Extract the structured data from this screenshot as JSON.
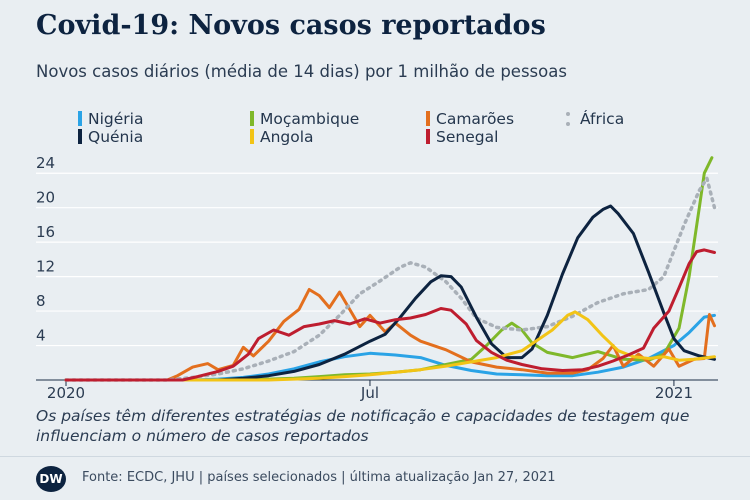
{
  "title": "Covid-19: Novos casos reportados",
  "subtitle": "Novos casos diários (média de 14 dias) por 1 milhão de pessoas",
  "note": "Os países têm diferentes estratégias de notificação e capacidades de testagem que influenciam o número de casos reportados",
  "logo_text": "DW",
  "source": "Fonte: ECDC, JHU | países selecionados | última atualização Jan 27, 2021",
  "chart_data": {
    "type": "line",
    "title": "Covid-19: Novos casos reportados",
    "subtitle": "Novos casos diários (média de 14 dias) por 1 milhão de pessoas",
    "xlabel": "",
    "ylabel": "",
    "x_unit": "months since 2020-01-01",
    "xlim": [
      0,
      12.87
    ],
    "ylim": [
      0,
      26
    ],
    "grid": true,
    "legend_position": "top",
    "xticks": [
      {
        "x": 0,
        "label": "2020"
      },
      {
        "x": 6,
        "label": "Jul"
      },
      {
        "x": 12,
        "label": "2021"
      }
    ],
    "yticks": [
      4,
      8,
      12,
      16,
      20,
      24
    ],
    "series": [
      {
        "name": "Nigéria",
        "color": "#2aa3e6",
        "style": "solid",
        "points": [
          [
            0,
            0
          ],
          [
            2.5,
            0
          ],
          [
            3,
            0.1
          ],
          [
            3.5,
            0.3
          ],
          [
            4,
            0.7
          ],
          [
            4.5,
            1.3
          ],
          [
            5,
            2.1
          ],
          [
            5.5,
            2.7
          ],
          [
            6,
            3.1
          ],
          [
            6.5,
            2.9
          ],
          [
            7,
            2.6
          ],
          [
            7.5,
            1.7
          ],
          [
            8,
            1.1
          ],
          [
            8.5,
            0.7
          ],
          [
            9,
            0.6
          ],
          [
            9.5,
            0.5
          ],
          [
            10,
            0.5
          ],
          [
            10.5,
            0.9
          ],
          [
            11,
            1.5
          ],
          [
            11.5,
            2.5
          ],
          [
            12,
            4
          ],
          [
            12.3,
            5.5
          ],
          [
            12.6,
            7.3
          ],
          [
            12.8,
            7.5
          ]
        ]
      },
      {
        "name": "Moçambique",
        "color": "#7fb82a",
        "style": "solid",
        "points": [
          [
            0,
            0
          ],
          [
            3.5,
            0
          ],
          [
            4,
            0.1
          ],
          [
            4.5,
            0.2
          ],
          [
            5,
            0.4
          ],
          [
            5.5,
            0.6
          ],
          [
            6,
            0.7
          ],
          [
            6.5,
            0.9
          ],
          [
            7,
            1.2
          ],
          [
            7.5,
            1.8
          ],
          [
            8,
            2.4
          ],
          [
            8.3,
            4
          ],
          [
            8.6,
            5.8
          ],
          [
            8.8,
            6.6
          ],
          [
            9,
            5.8
          ],
          [
            9.2,
            4.3
          ],
          [
            9.5,
            3.2
          ],
          [
            10,
            2.6
          ],
          [
            10.5,
            3.3
          ],
          [
            11,
            2.4
          ],
          [
            11.5,
            2.3
          ],
          [
            11.8,
            3
          ],
          [
            12.1,
            6
          ],
          [
            12.3,
            12
          ],
          [
            12.5,
            20
          ],
          [
            12.6,
            24
          ],
          [
            12.75,
            25.8
          ]
        ]
      },
      {
        "name": "Camarões",
        "color": "#e36f1e",
        "style": "solid",
        "points": [
          [
            0,
            0
          ],
          [
            2,
            0
          ],
          [
            2.2,
            0.5
          ],
          [
            2.5,
            1.5
          ],
          [
            2.8,
            1.9
          ],
          [
            3,
            1.2
          ],
          [
            3.3,
            1.7
          ],
          [
            3.5,
            3.8
          ],
          [
            3.7,
            2.8
          ],
          [
            4,
            4.5
          ],
          [
            4.3,
            6.8
          ],
          [
            4.6,
            8.2
          ],
          [
            4.8,
            10.5
          ],
          [
            5,
            9.8
          ],
          [
            5.2,
            8.4
          ],
          [
            5.4,
            10.2
          ],
          [
            5.6,
            8.2
          ],
          [
            5.8,
            6.2
          ],
          [
            6,
            7.5
          ],
          [
            6.3,
            5.6
          ],
          [
            6.5,
            6.6
          ],
          [
            6.8,
            5.2
          ],
          [
            7,
            4.5
          ],
          [
            7.5,
            3.5
          ],
          [
            8,
            2.1
          ],
          [
            8.5,
            1.5
          ],
          [
            9,
            1.2
          ],
          [
            9.5,
            0.8
          ],
          [
            10,
            0.8
          ],
          [
            10.3,
            1.2
          ],
          [
            10.6,
            2.5
          ],
          [
            10.8,
            4
          ],
          [
            11,
            1.6
          ],
          [
            11.3,
            3
          ],
          [
            11.6,
            1.6
          ],
          [
            11.9,
            3.6
          ],
          [
            12.1,
            1.6
          ],
          [
            12.4,
            2.4
          ],
          [
            12.6,
            2.5
          ],
          [
            12.7,
            7.6
          ],
          [
            12.8,
            6.3
          ]
        ]
      },
      {
        "name": "África",
        "color": "#a9b0b8",
        "style": "dotted",
        "points": [
          [
            0,
            0
          ],
          [
            2,
            0
          ],
          [
            2.5,
            0.3
          ],
          [
            3,
            0.7
          ],
          [
            3.5,
            1.3
          ],
          [
            4,
            2.2
          ],
          [
            4.5,
            3.3
          ],
          [
            5,
            5.2
          ],
          [
            5.4,
            7.5
          ],
          [
            5.8,
            10
          ],
          [
            6.2,
            11.5
          ],
          [
            6.6,
            13.1
          ],
          [
            6.8,
            13.6
          ],
          [
            7.1,
            13.1
          ],
          [
            7.5,
            11.4
          ],
          [
            7.8,
            9.5
          ],
          [
            8.1,
            7.2
          ],
          [
            8.5,
            6.1
          ],
          [
            9,
            5.8
          ],
          [
            9.5,
            6.2
          ],
          [
            10,
            7.4
          ],
          [
            10.5,
            9
          ],
          [
            11,
            10
          ],
          [
            11.5,
            10.5
          ],
          [
            11.8,
            12
          ],
          [
            12,
            15
          ],
          [
            12.2,
            18
          ],
          [
            12.5,
            22
          ],
          [
            12.65,
            23.4
          ],
          [
            12.8,
            20
          ]
        ]
      },
      {
        "name": "Quénia",
        "color": "#0d2340",
        "style": "solid",
        "points": [
          [
            0,
            0
          ],
          [
            3,
            0
          ],
          [
            3.5,
            0.2
          ],
          [
            4,
            0.5
          ],
          [
            4.5,
            1
          ],
          [
            5,
            1.8
          ],
          [
            5.5,
            3
          ],
          [
            6,
            4.5
          ],
          [
            6.3,
            5.3
          ],
          [
            6.6,
            7.3
          ],
          [
            6.9,
            9.5
          ],
          [
            7.2,
            11.4
          ],
          [
            7.4,
            12.1
          ],
          [
            7.6,
            12
          ],
          [
            7.8,
            10.8
          ],
          [
            8.1,
            7.3
          ],
          [
            8.4,
            4.2
          ],
          [
            8.7,
            2.6
          ],
          [
            9,
            2.6
          ],
          [
            9.2,
            3.6
          ],
          [
            9.5,
            7.5
          ],
          [
            9.8,
            12.3
          ],
          [
            10.1,
            16.5
          ],
          [
            10.4,
            18.9
          ],
          [
            10.6,
            19.8
          ],
          [
            10.75,
            20.2
          ],
          [
            10.9,
            19.3
          ],
          [
            11.2,
            17
          ],
          [
            11.5,
            12.5
          ],
          [
            11.8,
            7.8
          ],
          [
            12,
            4.8
          ],
          [
            12.2,
            3.4
          ],
          [
            12.5,
            2.8
          ],
          [
            12.8,
            2.4
          ]
        ]
      },
      {
        "name": "Angola",
        "color": "#f2c416",
        "style": "solid",
        "points": [
          [
            0,
            0
          ],
          [
            4,
            0
          ],
          [
            4.5,
            0.1
          ],
          [
            5,
            0.2
          ],
          [
            5.5,
            0.4
          ],
          [
            6,
            0.6
          ],
          [
            6.5,
            0.9
          ],
          [
            7,
            1.2
          ],
          [
            7.5,
            1.6
          ],
          [
            8,
            2.1
          ],
          [
            8.5,
            2.6
          ],
          [
            9,
            3.4
          ],
          [
            9.3,
            4.6
          ],
          [
            9.6,
            5.8
          ],
          [
            9.9,
            7.5
          ],
          [
            10.05,
            7.9
          ],
          [
            10.3,
            7
          ],
          [
            10.6,
            5.1
          ],
          [
            10.9,
            3.4
          ],
          [
            11.2,
            2.7
          ],
          [
            11.5,
            2.5
          ],
          [
            11.8,
            2.7
          ],
          [
            12.1,
            2.3
          ],
          [
            12.4,
            2.4
          ],
          [
            12.8,
            2.7
          ]
        ]
      },
      {
        "name": "Senegal",
        "color": "#be1d2f",
        "style": "solid",
        "points": [
          [
            0,
            0
          ],
          [
            2.3,
            0
          ],
          [
            2.6,
            0.4
          ],
          [
            3,
            1
          ],
          [
            3.3,
            1.6
          ],
          [
            3.6,
            3
          ],
          [
            3.8,
            4.8
          ],
          [
            4.1,
            5.8
          ],
          [
            4.4,
            5.2
          ],
          [
            4.7,
            6.2
          ],
          [
            5,
            6.5
          ],
          [
            5.3,
            6.9
          ],
          [
            5.6,
            6.5
          ],
          [
            5.9,
            7.1
          ],
          [
            6.2,
            6.6
          ],
          [
            6.5,
            7
          ],
          [
            6.8,
            7.2
          ],
          [
            7.1,
            7.6
          ],
          [
            7.4,
            8.3
          ],
          [
            7.6,
            8.1
          ],
          [
            7.9,
            6.5
          ],
          [
            8.1,
            4.6
          ],
          [
            8.4,
            3.2
          ],
          [
            8.7,
            2.3
          ],
          [
            9,
            1.8
          ],
          [
            9.4,
            1.3
          ],
          [
            9.8,
            1.1
          ],
          [
            10.2,
            1.2
          ],
          [
            10.5,
            1.6
          ],
          [
            10.8,
            2.2
          ],
          [
            11.1,
            2.9
          ],
          [
            11.4,
            3.7
          ],
          [
            11.6,
            6
          ],
          [
            11.9,
            8
          ],
          [
            12.1,
            10.7
          ],
          [
            12.3,
            13.5
          ],
          [
            12.45,
            14.9
          ],
          [
            12.6,
            15.1
          ],
          [
            12.8,
            14.8
          ]
        ]
      }
    ]
  }
}
